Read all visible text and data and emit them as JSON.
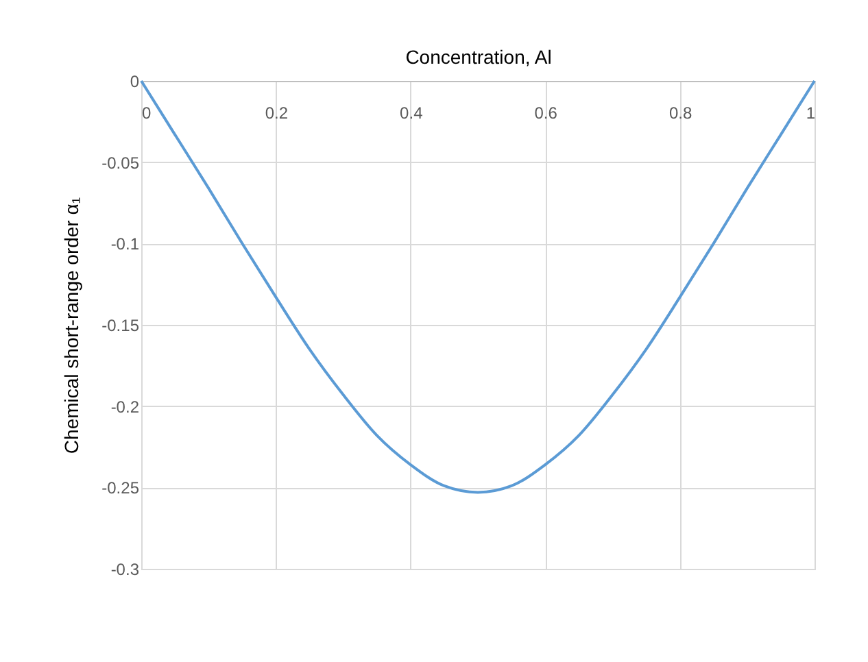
{
  "chart_data": {
    "type": "line",
    "xlabel": "Concentration, Al",
    "ylabel": "Chemical short-range order α₁",
    "x": [
      0,
      0.05,
      0.1,
      0.15,
      0.2,
      0.25,
      0.3,
      0.35,
      0.4,
      0.45,
      0.5,
      0.55,
      0.6,
      0.65,
      0.7,
      0.75,
      0.8,
      0.85,
      0.9,
      0.95,
      1
    ],
    "series": [
      {
        "color": "#5b9bd5",
        "values": [
          0,
          -0.033,
          -0.066,
          -0.1,
          -0.133,
          -0.165,
          -0.193,
          -0.218,
          -0.236,
          -0.249,
          -0.253,
          -0.249,
          -0.236,
          -0.218,
          -0.193,
          -0.165,
          -0.133,
          -0.1,
          -0.066,
          -0.033,
          0
        ]
      }
    ],
    "xlim": [
      0,
      1
    ],
    "xticks": [
      0,
      0.2,
      0.4,
      0.6,
      0.8,
      1
    ],
    "ylim": [
      -0.3,
      0
    ],
    "yticks": [
      0,
      -0.05,
      -0.1,
      -0.15,
      -0.2,
      -0.25,
      -0.3
    ],
    "grid": true,
    "legend": false,
    "marker": "none",
    "line_style": "solid"
  }
}
